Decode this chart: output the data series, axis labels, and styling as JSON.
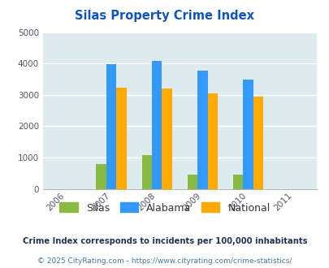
{
  "title": "Silas Property Crime Index",
  "bar_years": [
    2007,
    2008,
    2009,
    2010
  ],
  "silas": [
    800,
    1075,
    450,
    470
  ],
  "alabama": [
    3970,
    4075,
    3770,
    3490
  ],
  "national": [
    3240,
    3210,
    3040,
    2940
  ],
  "silas_color": "#88bb44",
  "alabama_color": "#3399ff",
  "national_color": "#ffaa00",
  "bg_color": "#ddeaee",
  "ylim": [
    0,
    5000
  ],
  "yticks": [
    0,
    1000,
    2000,
    3000,
    4000,
    5000
  ],
  "title_color": "#1155bb",
  "legend_labels": [
    "Silas",
    "Alabama",
    "National"
  ],
  "footnote1": "Crime Index corresponds to incidents per 100,000 inhabitants",
  "footnote2": "© 2025 CityRating.com - https://www.cityrating.com/crime-statistics/",
  "footnote1_color": "#223355",
  "footnote2_color": "#4477aa",
  "bar_width": 0.22,
  "xlim": [
    2005.5,
    2011.5
  ],
  "xticks": [
    2006,
    2007,
    2008,
    2009,
    2010,
    2011
  ]
}
